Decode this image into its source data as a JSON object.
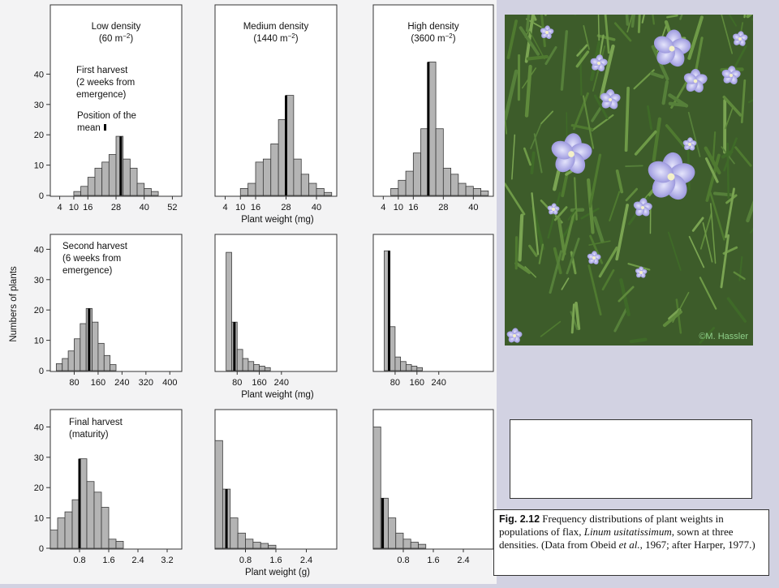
{
  "figure": {
    "y_axis_label": "Numbers of plants",
    "columns": [
      {
        "title": "Low density",
        "subtitle_base": "(60 m",
        "subtitle_sup": "−2",
        "subtitle_end": ")"
      },
      {
        "title": "Medium density",
        "subtitle_base": "(1440 m",
        "subtitle_sup": "−2",
        "subtitle_end": ")"
      },
      {
        "title": "High density",
        "subtitle_base": "(3600 m",
        "subtitle_sup": "−2",
        "subtitle_end": ")"
      }
    ],
    "rows": [
      {
        "harvest_label": [
          "First harvest",
          "(2 weeks from",
          "emergence)"
        ],
        "mean_label": [
          "Position of the",
          "mean"
        ],
        "xlabel": "Plant weight (mg)"
      },
      {
        "harvest_label": [
          "Second harvest",
          "(6 weeks from",
          "emergence)"
        ],
        "xlabel": "Plant weight (mg)"
      },
      {
        "harvest_label": [
          "Final harvest",
          "(maturity)"
        ],
        "xlabel": "Plant weight (g)"
      }
    ]
  },
  "chart_data": [
    {
      "type": "bar",
      "title": "Low density",
      "subtitle": "(60 m−2)",
      "row_label": "First harvest (2 weeks from emergence)",
      "xlabel": "",
      "ylabel": "Numbers of plants",
      "xlim": [
        0,
        56
      ],
      "xticks": [
        4,
        10,
        16,
        28,
        40,
        52
      ],
      "ylim": [
        0,
        45
      ],
      "yticks": [
        0,
        10,
        20,
        30,
        40
      ],
      "bin_start": 10,
      "bin_width": 3,
      "values": [
        1.3,
        3,
        6,
        9,
        11,
        13.5,
        19.5,
        12,
        9,
        4,
        2.3,
        1.3
      ],
      "mean": 30
    },
    {
      "type": "bar",
      "title": "Medium density",
      "subtitle": "(1440 m−2)",
      "xlabel": "Plant weight (mg)",
      "xlim": [
        0,
        48
      ],
      "xticks": [
        4,
        10,
        16,
        28,
        40
      ],
      "ylim": [
        0,
        45
      ],
      "yticks": [
        0,
        10,
        20,
        30,
        40
      ],
      "bin_start": 10,
      "bin_width": 3,
      "values": [
        2.3,
        4,
        11,
        12,
        17,
        25,
        33,
        12,
        7,
        4,
        2.3,
        1
      ],
      "mean": 28
    },
    {
      "type": "bar",
      "title": "High density",
      "subtitle": "(3600 m−2)",
      "xlabel": "",
      "xlim": [
        0,
        48
      ],
      "xticks": [
        4,
        10,
        16,
        28,
        40
      ],
      "ylim": [
        0,
        45
      ],
      "yticks": [
        0,
        10,
        20,
        30,
        40
      ],
      "bin_start": 7,
      "bin_width": 3,
      "values": [
        2.3,
        5,
        8,
        14,
        22,
        44,
        22,
        9,
        7,
        4,
        3,
        2.3,
        1.5
      ],
      "mean": 22
    },
    {
      "type": "bar",
      "row_label": "Second harvest (6 weeks from emergence)",
      "xlabel": "",
      "ylabel": "Numbers of plants",
      "xlim": [
        0,
        440
      ],
      "xticks": [
        80,
        160,
        240,
        320,
        400
      ],
      "ylim": [
        0,
        45
      ],
      "yticks": [
        0,
        10,
        20,
        30,
        40
      ],
      "bin_start": 20,
      "bin_width": 20,
      "values": [
        2.3,
        4,
        6.5,
        10.5,
        15.5,
        20.5,
        16,
        9,
        5,
        2
      ],
      "mean": 130
    },
    {
      "type": "bar",
      "xlabel": "Plant weight (mg)",
      "xlim": [
        0,
        440
      ],
      "xticks": [
        80,
        160,
        240
      ],
      "ylim": [
        0,
        45
      ],
      "yticks": [
        0,
        10,
        20,
        30,
        40
      ],
      "bin_start": 40,
      "bin_width": 20,
      "values": [
        39,
        16,
        7,
        4,
        3,
        2,
        1.5,
        1
      ],
      "mean": 70
    },
    {
      "type": "bar",
      "xlabel": "",
      "xlim": [
        0,
        440
      ],
      "xticks": [
        80,
        160,
        240
      ],
      "ylim": [
        0,
        45
      ],
      "yticks": [
        0,
        10,
        20,
        30,
        40
      ],
      "bin_start": 40,
      "bin_width": 20,
      "values": [
        39.5,
        14.5,
        4.5,
        3,
        2,
        1.5,
        1
      ],
      "mean": 58
    },
    {
      "type": "bar",
      "row_label": "Final harvest (maturity)",
      "xlabel": "",
      "ylabel": "Numbers of plants",
      "xlim": [
        0,
        3.6
      ],
      "xticks": [
        0.8,
        1.6,
        2.4,
        3.2
      ],
      "ylim": [
        0,
        45
      ],
      "yticks": [
        0,
        10,
        20,
        30,
        40
      ],
      "bin_start": 0,
      "bin_width": 0.2,
      "values": [
        6,
        10,
        12,
        16,
        29.5,
        22,
        18.5,
        13.5,
        3,
        2.3
      ],
      "mean": 0.8
    },
    {
      "type": "bar",
      "xlabel": "Plant weight (g)",
      "xlim": [
        0,
        3.2
      ],
      "xticks": [
        0.8,
        1.6,
        2.4
      ],
      "ylim": [
        0,
        45
      ],
      "yticks": [
        0,
        10,
        20,
        30,
        40
      ],
      "bin_start": 0,
      "bin_width": 0.2,
      "values": [
        35.5,
        19.5,
        10,
        5,
        3,
        2,
        1.6,
        1
      ],
      "mean": 0.3
    },
    {
      "type": "bar",
      "xlabel": "",
      "xlim": [
        0,
        3.2
      ],
      "xticks": [
        0.8,
        1.6,
        2.4
      ],
      "ylim": [
        0,
        45
      ],
      "yticks": [
        0,
        10,
        20,
        30,
        40
      ],
      "bin_start": 0,
      "bin_width": 0.2,
      "values": [
        40,
        16.5,
        10,
        5,
        3,
        2,
        1.3
      ],
      "mean": 0.25
    }
  ],
  "photo": {
    "credit": "©M. Hassler"
  },
  "caption": {
    "fig_label": "Fig. 2.12",
    "text_1": " Frequency distributions of plant weights in populations of flax, ",
    "species": "Linum usitatissimum",
    "text_2": ", sown at three densities. (Data from Obeid ",
    "et_al": "et al.",
    "text_3": ", 1967; after Harper, 1977.)"
  },
  "colors": {
    "bar_fill": "#b4b4b4",
    "bar_stroke": "#3a3a3a",
    "mean_line": "#000000",
    "panel_bg": "#ffffff",
    "figure_bg": "#f3f3f4",
    "slide_bg": "#d2d2e2"
  }
}
